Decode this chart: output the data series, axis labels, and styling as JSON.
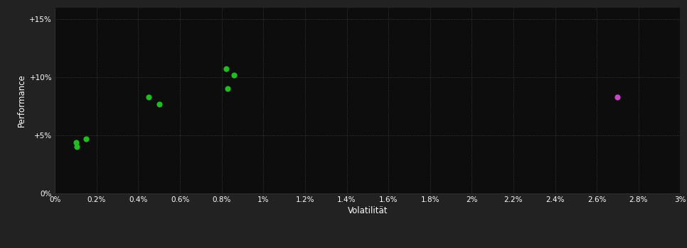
{
  "background_color": "#222222",
  "plot_bg_color": "#0d0d0d",
  "grid_color": "#444444",
  "text_color": "#ffffff",
  "xlabel": "Volatilität",
  "ylabel": "Performance",
  "xlim": [
    0,
    0.03
  ],
  "ylim": [
    0,
    0.16
  ],
  "xtick_values": [
    0.0,
    0.002,
    0.004,
    0.006,
    0.008,
    0.01,
    0.012,
    0.014,
    0.016,
    0.018,
    0.02,
    0.022,
    0.024,
    0.026,
    0.028,
    0.03
  ],
  "ytick_values": [
    0.0,
    0.05,
    0.1,
    0.15
  ],
  "ytick_labels": [
    "0%",
    "+5%",
    "+10%",
    "+15%"
  ],
  "xtick_labels": [
    "0%",
    "0.2%",
    "0.4%",
    "0.6%",
    "0.8%",
    "1%",
    "1.2%",
    "1.4%",
    "1.6%",
    "1.8%",
    "2%",
    "2.2%",
    "2.4%",
    "2.6%",
    "2.8%",
    "3%"
  ],
  "green_points": [
    [
      0.001,
      0.044
    ],
    [
      0.0015,
      0.047
    ],
    [
      0.00105,
      0.04
    ],
    [
      0.0045,
      0.083
    ],
    [
      0.005,
      0.077
    ],
    [
      0.0082,
      0.107
    ],
    [
      0.0086,
      0.102
    ],
    [
      0.0083,
      0.09
    ]
  ],
  "magenta_points": [
    [
      0.027,
      0.083
    ]
  ],
  "green_color": "#22bb22",
  "magenta_color": "#cc44cc",
  "marker_size": 35
}
